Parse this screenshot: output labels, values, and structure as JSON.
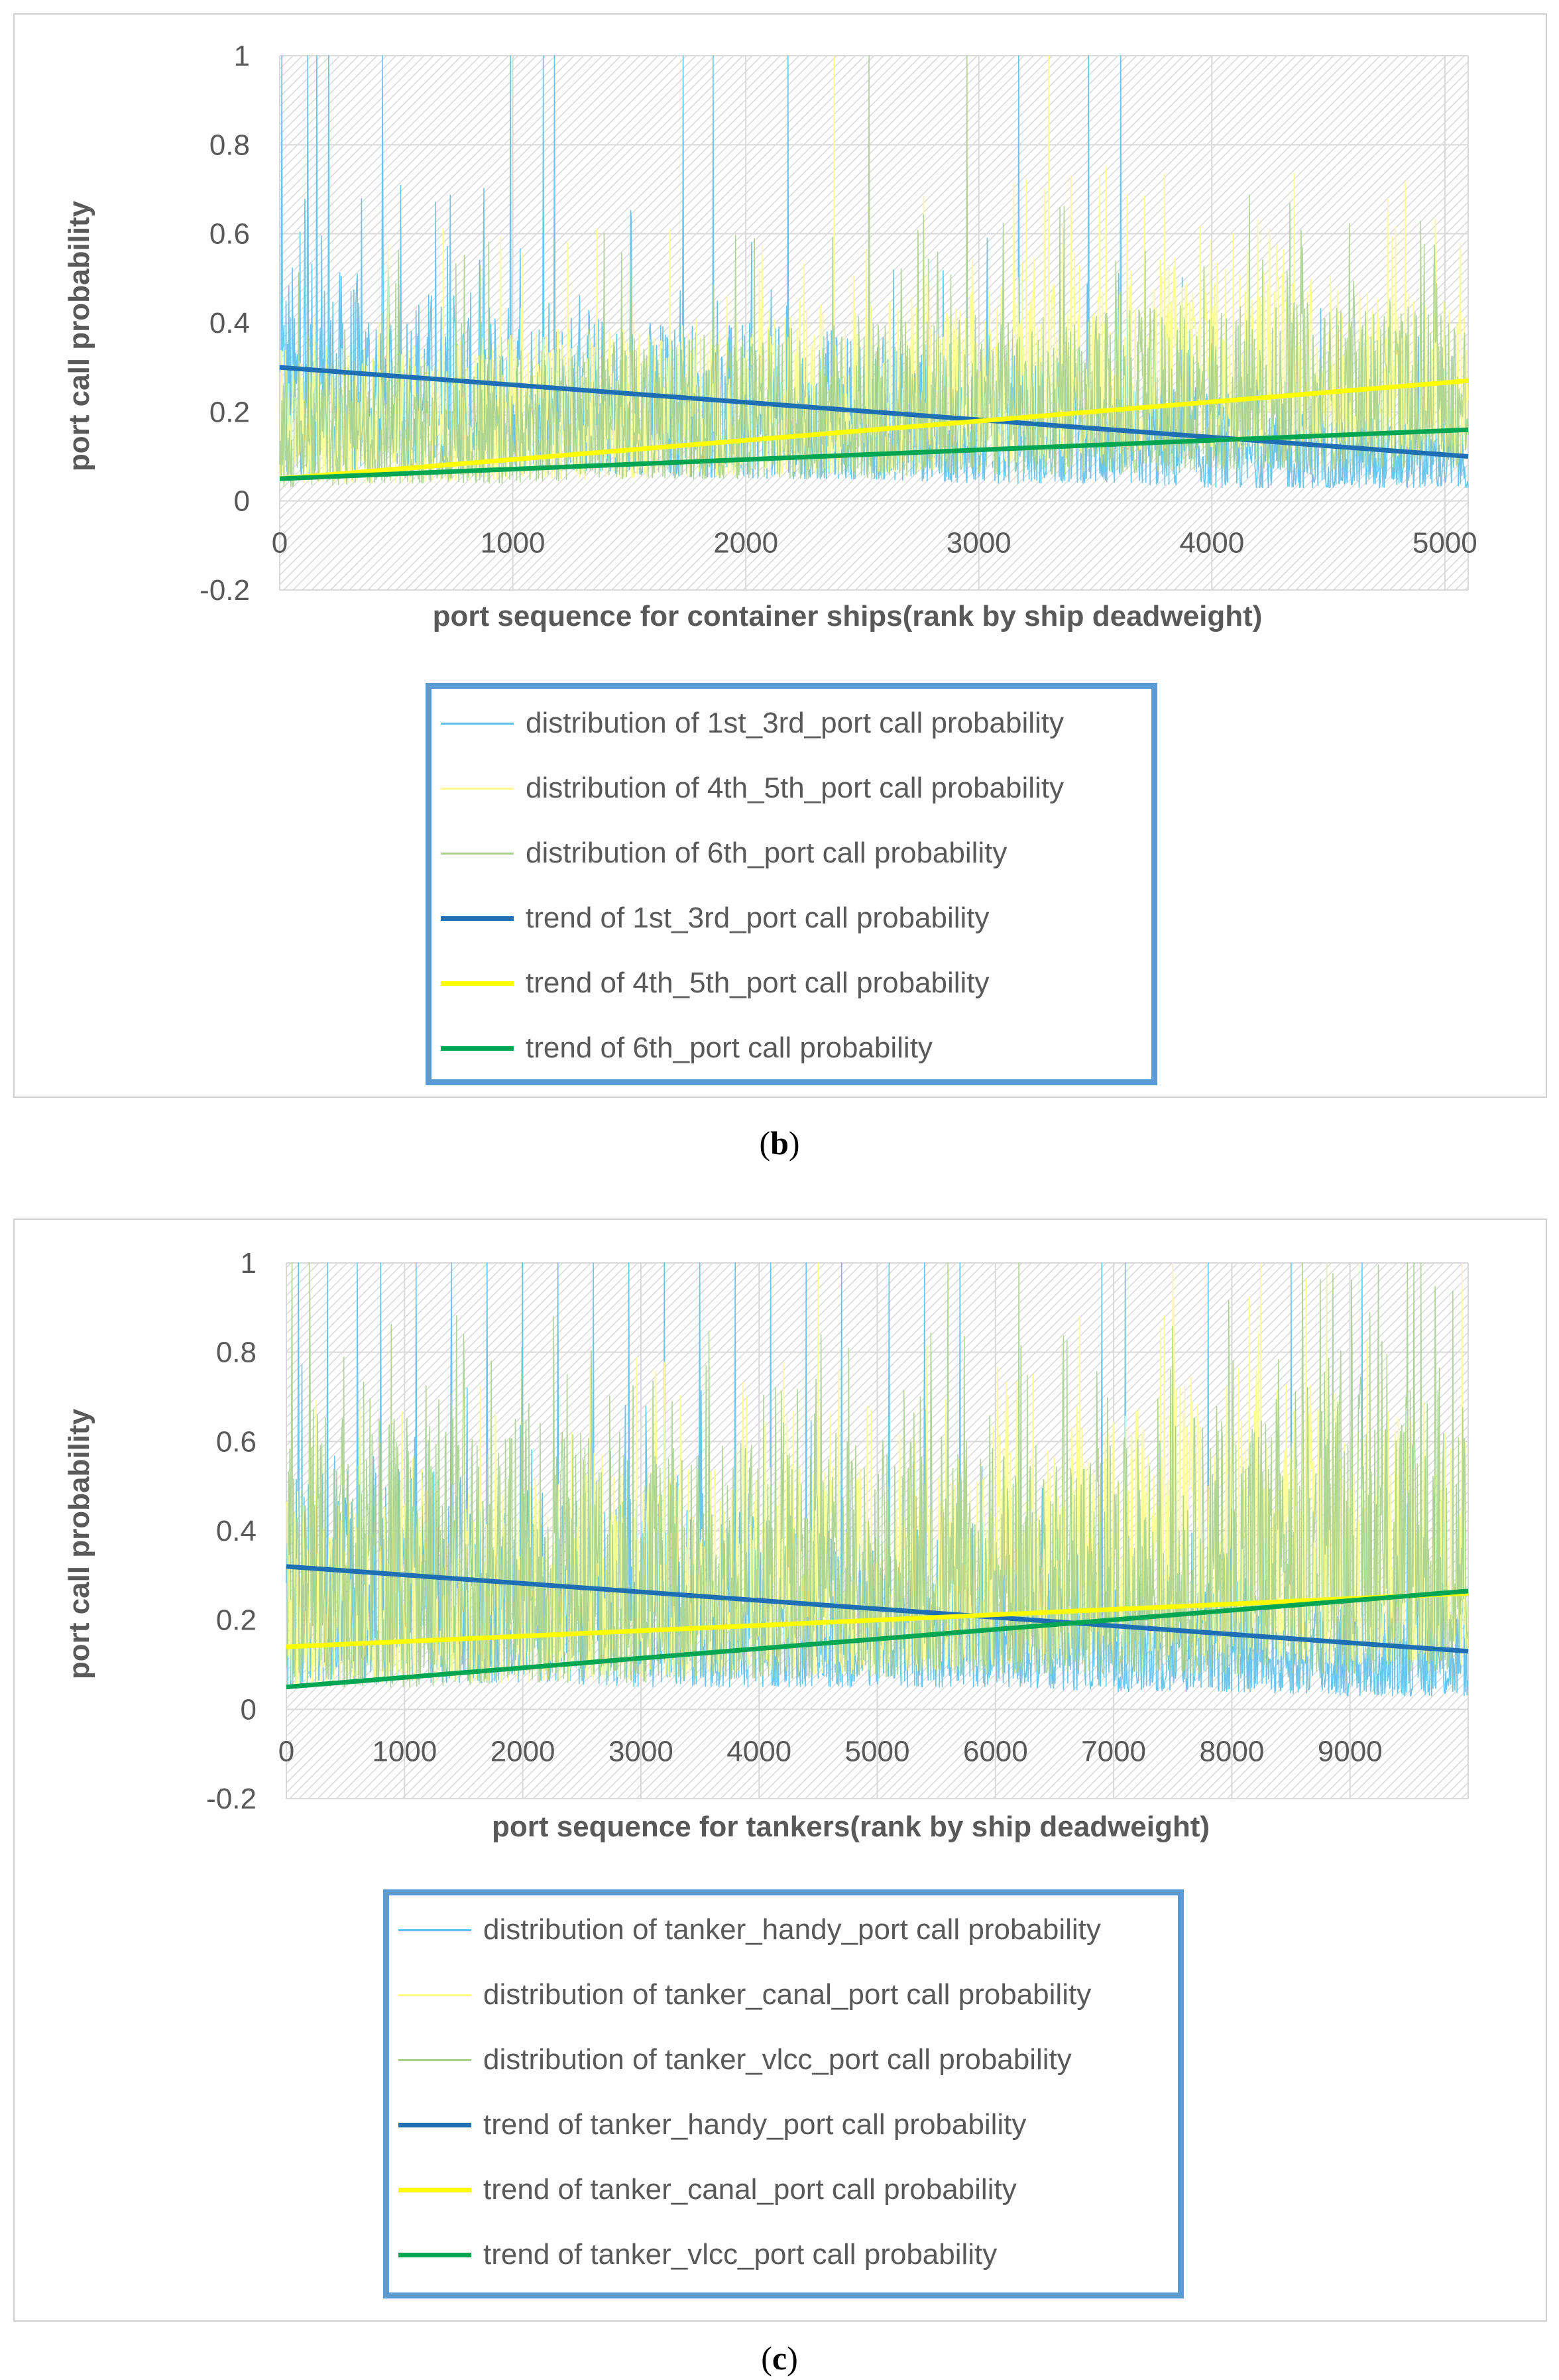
{
  "chart_data": [
    {
      "panel": "b",
      "type": "line",
      "caption_letter": "b",
      "xlabel": "port sequence for container ships(rank by ship deadweight)",
      "ylabel": "port call probability",
      "xlim": [
        0,
        5100
      ],
      "ylim": [
        -0.2,
        1
      ],
      "xticks": [
        "0",
        "1000",
        "2000",
        "3000",
        "4000",
        "5000"
      ],
      "yticks": [
        "-0.2",
        "0",
        "0.2",
        "0.4",
        "0.6",
        "0.8",
        "1"
      ],
      "series": [
        {
          "name": "distribution of 1st_3rd_port call probability",
          "kind": "distribution",
          "color": "#5bc0eb",
          "profile": {
            "x": [
              0,
              500,
              1000,
              1500,
              2000,
              2500,
              3000,
              3500,
              4000,
              4500,
              5100
            ],
            "low": [
              0.05,
              0.08,
              0.08,
              0.06,
              0.05,
              0.05,
              0.04,
              0.04,
              0.03,
              0.03,
              0.03
            ],
            "high": [
              0.55,
              0.5,
              0.45,
              0.42,
              0.4,
              0.38,
              0.35,
              0.3,
              0.25,
              0.2,
              0.2
            ]
          },
          "spikes": [
            10,
            120,
            160,
            210,
            440,
            990,
            1130,
            1180,
            1730,
            1860,
            2180,
            3170,
            3470,
            3610
          ]
        },
        {
          "name": "distribution of 4th_5th_port call probability",
          "kind": "distribution",
          "color": "#ffff8c",
          "profile": {
            "x": [
              0,
              500,
              1000,
              1500,
              2000,
              2500,
              3000,
              3500,
              4000,
              4500,
              5100
            ],
            "low": [
              0.04,
              0.04,
              0.05,
              0.05,
              0.06,
              0.06,
              0.08,
              0.1,
              0.12,
              0.12,
              0.1
            ],
            "high": [
              0.35,
              0.35,
              0.38,
              0.4,
              0.42,
              0.45,
              0.48,
              0.5,
              0.6,
              0.5,
              0.45
            ]
          },
          "spikes": [
            2380,
            3300
          ]
        },
        {
          "name": "distribution of 6th_port call probability",
          "kind": "distribution",
          "color": "#a9d18e",
          "profile": {
            "x": [
              0,
              500,
              1000,
              1500,
              2000,
              2500,
              3000,
              3500,
              4000,
              4500,
              5100
            ],
            "low": [
              0.03,
              0.04,
              0.04,
              0.05,
              0.05,
              0.05,
              0.06,
              0.06,
              0.07,
              0.07,
              0.08
            ],
            "high": [
              0.3,
              0.32,
              0.34,
              0.36,
              0.38,
              0.4,
              0.42,
              0.42,
              0.45,
              0.45,
              0.45
            ]
          },
          "spikes": [
            2530,
            2950
          ]
        },
        {
          "name": "trend of 1st_3rd_port call probability",
          "kind": "trend",
          "color": "#1f6fb5",
          "x": [
            0,
            5100
          ],
          "y": [
            0.3,
            0.1
          ]
        },
        {
          "name": "trend of 4th_5th_port call probability",
          "kind": "trend",
          "color": "#ffff00",
          "x": [
            0,
            5100
          ],
          "y": [
            0.05,
            0.27
          ]
        },
        {
          "name": "trend of 6th_port call probability",
          "kind": "trend",
          "color": "#00a651",
          "x": [
            0,
            5100
          ],
          "y": [
            0.05,
            0.16
          ]
        }
      ]
    },
    {
      "panel": "c",
      "type": "line",
      "caption_letter": "c",
      "xlabel": "port sequence for tankers(rank by ship deadweight)",
      "ylabel": "port call probability",
      "xlim": [
        0,
        10000
      ],
      "ylim": [
        -0.2,
        1
      ],
      "xticks": [
        "0",
        "1000",
        "2000",
        "3000",
        "4000",
        "5000",
        "6000",
        "7000",
        "8000",
        "9000"
      ],
      "yticks": [
        "-0.2",
        "0",
        "0.2",
        "0.4",
        "0.6",
        "0.8",
        "1"
      ],
      "series": [
        {
          "name": "distribution of tanker_handy_port call probability",
          "kind": "distribution",
          "color": "#5bc0eb",
          "profile": {
            "x": [
              0,
              1000,
              2000,
              3000,
              4000,
              5000,
              6000,
              7000,
              8000,
              9000,
              10000
            ],
            "low": [
              0.05,
              0.06,
              0.06,
              0.05,
              0.05,
              0.05,
              0.05,
              0.04,
              0.04,
              0.03,
              0.03
            ],
            "high": [
              0.6,
              0.55,
              0.5,
              0.48,
              0.45,
              0.4,
              0.35,
              0.3,
              0.3,
              0.25,
              0.25
            ]
          },
          "spikes": [
            100,
            350,
            600,
            800,
            1100,
            1400,
            1700,
            2000,
            2300,
            2600,
            2900,
            3200,
            3500,
            3800,
            4100,
            4400,
            4700,
            5100,
            5400,
            5700,
            6900,
            7100,
            7800,
            8500,
            8800,
            9100
          ]
        },
        {
          "name": "distribution of tanker_canal_port call probability",
          "kind": "distribution",
          "color": "#ffff8c",
          "profile": {
            "x": [
              0,
              1000,
              2000,
              3000,
              4000,
              5000,
              6000,
              7000,
              8000,
              9000,
              10000
            ],
            "low": [
              0.05,
              0.06,
              0.06,
              0.07,
              0.08,
              0.08,
              0.1,
              0.12,
              0.12,
              0.1,
              0.1
            ],
            "high": [
              0.5,
              0.5,
              0.5,
              0.55,
              0.55,
              0.55,
              0.6,
              0.65,
              0.8,
              0.7,
              0.6
            ]
          },
          "spikes": [
            4500,
            7500,
            8800,
            9950
          ]
        },
        {
          "name": "distribution of tanker_vlcc_port call probability",
          "kind": "distribution",
          "color": "#a9d18e",
          "profile": {
            "x": [
              0,
              1000,
              2000,
              3000,
              4000,
              5000,
              6000,
              7000,
              8000,
              9000,
              10000
            ],
            "low": [
              0.05,
              0.05,
              0.06,
              0.06,
              0.07,
              0.07,
              0.08,
              0.08,
              0.08,
              0.08,
              0.08
            ],
            "high": [
              0.7,
              0.65,
              0.65,
              0.6,
              0.6,
              0.6,
              0.6,
              0.6,
              0.7,
              0.75,
              0.8
            ]
          },
          "spikes": [
            50,
            200,
            5600,
            6200,
            8600,
            9600
          ]
        },
        {
          "name": "trend of tanker_handy_port call probability",
          "kind": "trend",
          "color": "#1f6fb5",
          "x": [
            0,
            10000
          ],
          "y": [
            0.32,
            0.13
          ]
        },
        {
          "name": "trend of tanker_canal_port call probability",
          "kind": "trend",
          "color": "#ffff00",
          "x": [
            0,
            10000
          ],
          "y": [
            0.14,
            0.26
          ]
        },
        {
          "name": "trend of tanker_vlcc_port call probability",
          "kind": "trend",
          "color": "#00a651",
          "x": [
            0,
            10000
          ],
          "y": [
            0.05,
            0.265
          ]
        }
      ]
    }
  ]
}
